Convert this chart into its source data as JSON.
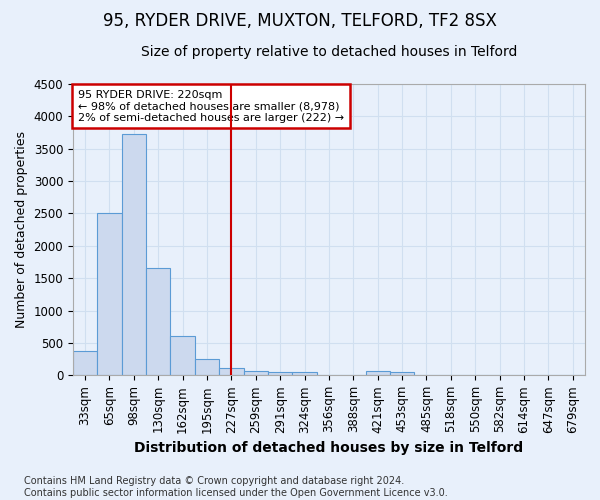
{
  "title": "95, RYDER DRIVE, MUXTON, TELFORD, TF2 8SX",
  "subtitle": "Size of property relative to detached houses in Telford",
  "xlabel": "Distribution of detached houses by size in Telford",
  "ylabel": "Number of detached properties",
  "categories": [
    "33sqm",
    "65sqm",
    "98sqm",
    "130sqm",
    "162sqm",
    "195sqm",
    "227sqm",
    "259sqm",
    "291sqm",
    "324sqm",
    "356sqm",
    "388sqm",
    "421sqm",
    "453sqm",
    "485sqm",
    "518sqm",
    "550sqm",
    "582sqm",
    "614sqm",
    "647sqm",
    "679sqm"
  ],
  "values": [
    375,
    2500,
    3725,
    1650,
    600,
    250,
    110,
    60,
    50,
    50,
    0,
    0,
    60,
    50,
    0,
    0,
    0,
    0,
    0,
    0,
    0
  ],
  "bar_color": "#ccd9ee",
  "bar_edge_color": "#5b9bd5",
  "grid_color": "#d0dff0",
  "bg_color": "#e8f0fb",
  "plot_bg_color": "#e8f0fb",
  "vline_x_index": 6,
  "vline_color": "#cc0000",
  "annotation_line1": "95 RYDER DRIVE: 220sqm",
  "annotation_line2": "← 98% of detached houses are smaller (8,978)",
  "annotation_line3": "2% of semi-detached houses are larger (222) →",
  "annotation_box_facecolor": "#ffffff",
  "annotation_box_edge": "#cc0000",
  "ylim": [
    0,
    4500
  ],
  "yticks": [
    0,
    500,
    1000,
    1500,
    2000,
    2500,
    3000,
    3500,
    4000,
    4500
  ],
  "footer": "Contains HM Land Registry data © Crown copyright and database right 2024.\nContains public sector information licensed under the Open Government Licence v3.0.",
  "title_fontsize": 12,
  "subtitle_fontsize": 10,
  "xlabel_fontsize": 10,
  "ylabel_fontsize": 9,
  "tick_fontsize": 8.5,
  "footer_fontsize": 7
}
